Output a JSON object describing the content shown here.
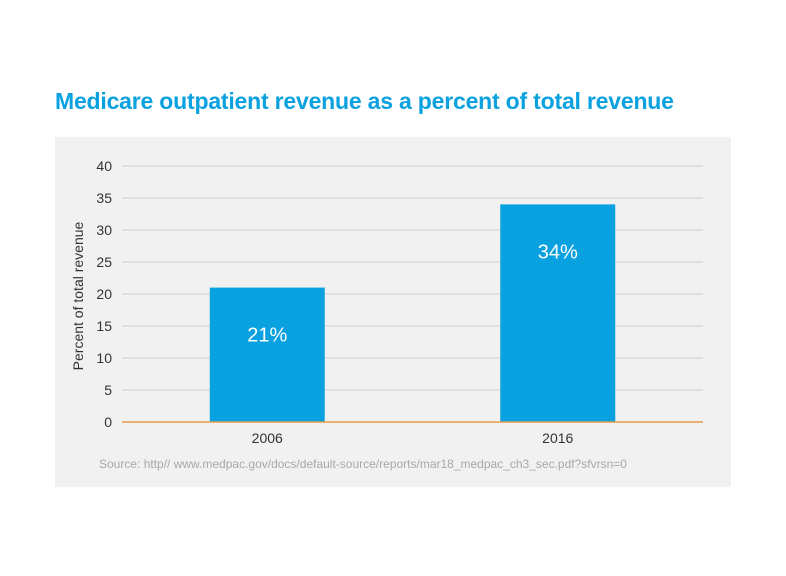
{
  "title": "Medicare outpatient revenue as a percent of total revenue",
  "source": "Source: http// www.medpac.gov/docs/default-source/reports/mar18_medpac_ch3_sec.pdf?sfvrsn=0",
  "colors": {
    "title": "#0aa1e0",
    "bar": "#0aa1e0",
    "bar_label": "#ffffff",
    "baseline": "#e59a4c",
    "grid": "#cfcfcf",
    "tick_text": "#333333",
    "panel_background": "#f1f1f1",
    "source_text": "#a8a8a8"
  },
  "chart_data": {
    "type": "bar",
    "categories": [
      "2006",
      "2016"
    ],
    "values": [
      21,
      34
    ],
    "data_labels": [
      "21%",
      "34%"
    ],
    "xlabel": "",
    "ylabel": "Percent of total revenue",
    "ylim": [
      0,
      40
    ],
    "yticks": [
      0,
      5,
      10,
      15,
      20,
      25,
      30,
      35,
      40
    ],
    "ytick_labels": [
      "0",
      "5",
      "10",
      "15",
      "20",
      "25",
      "30",
      "35",
      "40"
    ],
    "grid": true,
    "legend": "none"
  }
}
